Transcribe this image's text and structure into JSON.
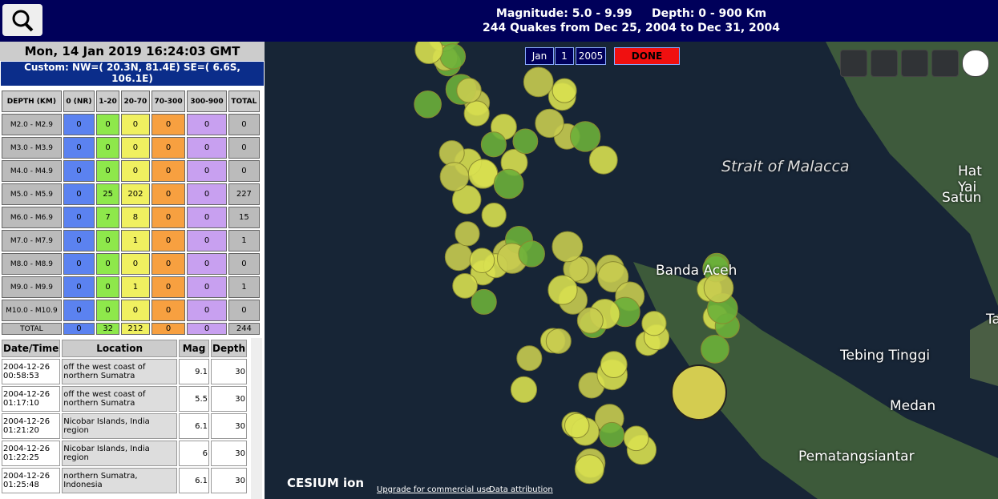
{
  "header": {
    "magnitude": "Magnitude: 5.0 - 9.99",
    "depth": "Depth: 0 - 900 Km",
    "summary": "244 Quakes from Dec 25, 2004 to Dec 31, 2004"
  },
  "clock": "Mon, 14 Jan 2019 16:24:03 GMT",
  "region": "Custom: NW=( 20.3N, 81.4E)  SE=( 6.6S, 106.1E)",
  "depth_table": {
    "headers": [
      "DEPTH (KM)",
      "0 (NR)",
      "1-20",
      "20-70",
      "70-300",
      "300-900",
      "TOTAL"
    ],
    "rows": [
      [
        "M2.0 - M2.9",
        0,
        0,
        0,
        0,
        0,
        0
      ],
      [
        "M3.0 - M3.9",
        0,
        0,
        0,
        0,
        0,
        0
      ],
      [
        "M4.0 - M4.9",
        0,
        0,
        0,
        0,
        0,
        0
      ],
      [
        "M5.0 - M5.9",
        0,
        25,
        202,
        0,
        0,
        227
      ],
      [
        "M6.0 - M6.9",
        0,
        7,
        8,
        0,
        0,
        15
      ],
      [
        "M7.0 - M7.9",
        0,
        0,
        1,
        0,
        0,
        1
      ],
      [
        "M8.0 - M8.9",
        0,
        0,
        0,
        0,
        0,
        0
      ],
      [
        "M9.0 - M9.9",
        0,
        0,
        1,
        0,
        0,
        1
      ],
      [
        "M10.0 - M10.9",
        0,
        0,
        0,
        0,
        0,
        0
      ],
      [
        "TOTAL",
        0,
        32,
        212,
        0,
        0,
        244
      ]
    ]
  },
  "quake_list": {
    "headers": [
      "Date/Time",
      "Location",
      "Mag",
      "Depth"
    ],
    "rows": [
      [
        "2004-12-26 00:58:53",
        "off the west coast of northern Sumatra",
        9.1,
        30
      ],
      [
        "2004-12-26 01:17:10",
        "off the west coast of northern Sumatra",
        5.5,
        30
      ],
      [
        "2004-12-26 01:21:20",
        "Nicobar Islands, India region",
        6.1,
        30
      ],
      [
        "2004-12-26 01:22:25",
        "Nicobar Islands, India region",
        6,
        30
      ],
      [
        "2004-12-26 01:25:48",
        "northern Sumatra, Indonesia",
        6.1,
        30
      ]
    ]
  },
  "date_controls": {
    "month": "Jan",
    "day": "1",
    "year": "2005",
    "done": "DONE"
  },
  "map_labels": [
    "Strait of Malacca",
    "Hat Yai",
    "Satun",
    "Banda Aceh",
    "Tebing Tinggi",
    "Medan",
    "Pematangsiantar",
    "Tai"
  ],
  "footer": {
    "logo": "CESIUM ion",
    "upgrade": "Upgrade for commercial use.",
    "attribution": "Data attribution"
  }
}
